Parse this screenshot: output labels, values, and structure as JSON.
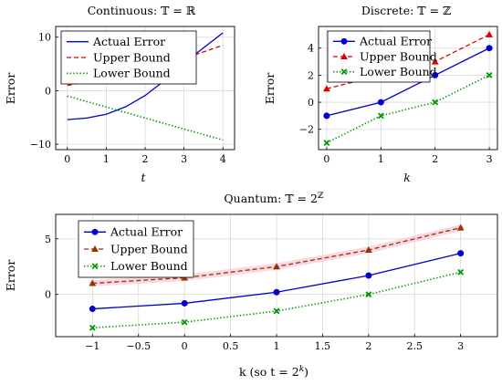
{
  "chart_data": [
    {
      "type": "line",
      "title": "Continuous: 𝕋 = ℝ",
      "xlabel": "t",
      "ylabel": "Error",
      "xlim": [
        -0.3,
        4.3
      ],
      "ylim": [
        -11,
        12
      ],
      "xticks": [
        0,
        1,
        2,
        3,
        4
      ],
      "xtick_labels": [
        "0",
        "1",
        "2",
        "3",
        "4"
      ],
      "yticks": [
        -10,
        0,
        10
      ],
      "ytick_labels": [
        "−10",
        "0",
        "10"
      ],
      "grid": true,
      "legend_position": "top-left",
      "series": [
        {
          "name": "Actual Error",
          "color": "#0000cc",
          "style": "solid",
          "marker": "none",
          "x": [
            0,
            0.5,
            1,
            1.5,
            2,
            2.5,
            3,
            3.5,
            4
          ],
          "y": [
            -5.4,
            -5.1,
            -4.4,
            -3.0,
            -0.9,
            1.9,
            5.2,
            8.0,
            10.8
          ]
        },
        {
          "name": "Upper Bound",
          "color": "#dd0000",
          "style": "dashed",
          "marker": "none",
          "x": [
            0,
            1,
            2,
            3,
            4
          ],
          "y": [
            1.0,
            2.3,
            4.0,
            6.0,
            8.5
          ]
        },
        {
          "name": "Lower Bound",
          "color": "#009900",
          "style": "dotted",
          "marker": "none",
          "x": [
            0,
            4
          ],
          "y": [
            -1.0,
            -9.2
          ]
        }
      ]
    },
    {
      "type": "line",
      "title": "Discrete: 𝕋 = ℤ",
      "xlabel": "k",
      "ylabel": "Error",
      "xlim": [
        -0.15,
        3.15
      ],
      "ylim": [
        -3.5,
        5.6
      ],
      "xticks": [
        0,
        1,
        2,
        3
      ],
      "xtick_labels": [
        "0",
        "1",
        "2",
        "3"
      ],
      "yticks": [
        -2,
        0,
        2,
        4
      ],
      "ytick_labels": [
        "−2",
        "0",
        "2",
        "4"
      ],
      "grid": true,
      "legend_position": "top-left",
      "series": [
        {
          "name": "Actual Error",
          "color": "#0000cc",
          "style": "solid",
          "marker": "circle",
          "x": [
            0,
            1,
            2,
            3
          ],
          "y": [
            -1,
            0,
            2,
            4
          ]
        },
        {
          "name": "Upper Bound",
          "color": "#dd0000",
          "style": "dashed",
          "marker": "triangle",
          "x": [
            0,
            1,
            2,
            3
          ],
          "y": [
            1,
            2,
            3,
            5
          ]
        },
        {
          "name": "Lower Bound",
          "color": "#009900",
          "style": "dotted",
          "marker": "x",
          "x": [
            0,
            1,
            2,
            3
          ],
          "y": [
            -3,
            -1,
            0,
            2
          ]
        }
      ]
    },
    {
      "type": "line",
      "title": "Quantum: 𝕋 = 2ℤ",
      "title_base": "Quantum: 𝕋 = 2",
      "title_sup": "ℤ",
      "xlabel": "k (so t = 2k)",
      "xlabel_base": "k (so t = 2",
      "xlabel_sup": "k",
      "xlabel_close": ")",
      "ylabel": "Error",
      "xlim": [
        -1.4,
        3.4
      ],
      "ylim": [
        -3.8,
        7.2
      ],
      "xticks": [
        -1,
        -0.5,
        0,
        0.5,
        1,
        1.5,
        2,
        2.5,
        3
      ],
      "xtick_labels": [
        "−1",
        "−0.5",
        "0",
        "0.5",
        "1",
        "1.5",
        "2",
        "2.5",
        "3"
      ],
      "yticks": [
        0,
        5
      ],
      "ytick_labels": [
        "0",
        "5"
      ],
      "grid": true,
      "legend_position": "top-left",
      "series": [
        {
          "name": "Actual Error",
          "color": "#0000cc",
          "style": "solid",
          "marker": "circle",
          "x": [
            -1,
            0,
            1,
            2,
            3
          ],
          "y": [
            -1.3,
            -0.8,
            0.2,
            1.7,
            3.7
          ]
        },
        {
          "name": "Upper Bound",
          "color": "#993300",
          "style": "dashed",
          "marker": "triangle",
          "band": "#f7c6d9",
          "x": [
            -1,
            0,
            1,
            2,
            3
          ],
          "y": [
            1.0,
            1.5,
            2.5,
            4.0,
            6.0
          ]
        },
        {
          "name": "Lower Bound",
          "color": "#009900",
          "style": "dotted",
          "marker": "x",
          "x": [
            -1,
            0,
            1,
            2,
            3
          ],
          "y": [
            -3.0,
            -2.5,
            -1.5,
            0.0,
            2.0
          ]
        }
      ]
    }
  ]
}
